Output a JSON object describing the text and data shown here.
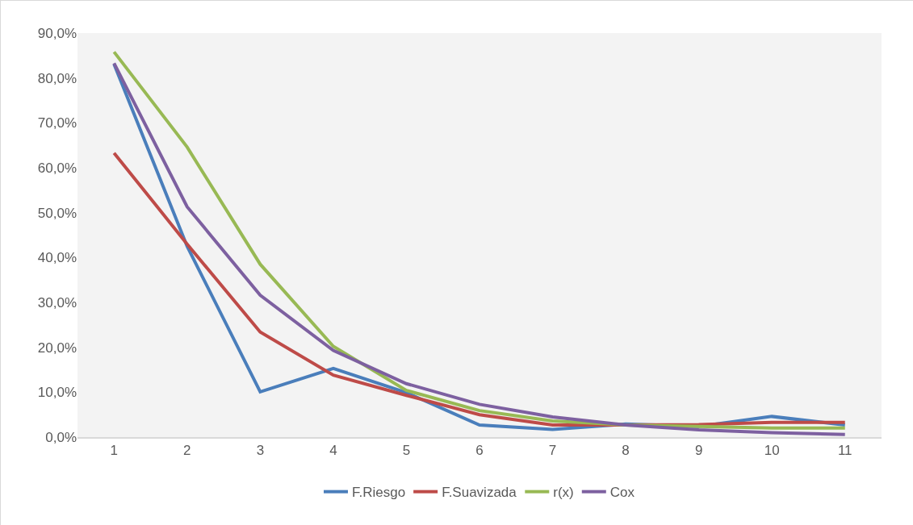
{
  "chart_data": {
    "type": "line",
    "categories": [
      "1",
      "2",
      "3",
      "4",
      "5",
      "6",
      "7",
      "8",
      "9",
      "10",
      "11"
    ],
    "series": [
      {
        "name": "F.Riesgo",
        "color": "#4a7ebb",
        "values": [
          83.1,
          42.5,
          10.1,
          15.3,
          9.9,
          2.7,
          1.7,
          2.9,
          2.4,
          4.6,
          2.7
        ]
      },
      {
        "name": "F.Suavizada",
        "color": "#be4b48",
        "values": [
          63.3,
          43,
          23.4,
          13.8,
          9.3,
          5.0,
          2.7,
          2.7,
          2.8,
          3.3,
          3.3
        ]
      },
      {
        "name": "r(x)",
        "color": "#98b954",
        "values": [
          85.8,
          64.6,
          38.5,
          20.2,
          10.4,
          5.9,
          3.6,
          2.7,
          2.4,
          2.0,
          2.0
        ]
      },
      {
        "name": "Cox",
        "color": "#7d60a0",
        "values": [
          83.3,
          51.3,
          31.6,
          19.3,
          11.9,
          7.3,
          4.5,
          2.7,
          1.6,
          1.0,
          0.6
        ]
      }
    ],
    "ylim": [
      0,
      90
    ],
    "yticks": [
      {
        "value": 0,
        "label": "0,0%"
      },
      {
        "value": 10,
        "label": "10,0%"
      },
      {
        "value": 20,
        "label": "20,0%"
      },
      {
        "value": 30,
        "label": "30,0%"
      },
      {
        "value": 40,
        "label": "40,0%"
      },
      {
        "value": 50,
        "label": "50,0%"
      },
      {
        "value": 60,
        "label": "60,0%"
      },
      {
        "value": 70,
        "label": "70,0%"
      },
      {
        "value": 80,
        "label": "80,0%"
      },
      {
        "value": 90,
        "label": "90,0%"
      }
    ],
    "grid": false,
    "legend": "bottom",
    "marker": "none",
    "line_style": "solid"
  }
}
